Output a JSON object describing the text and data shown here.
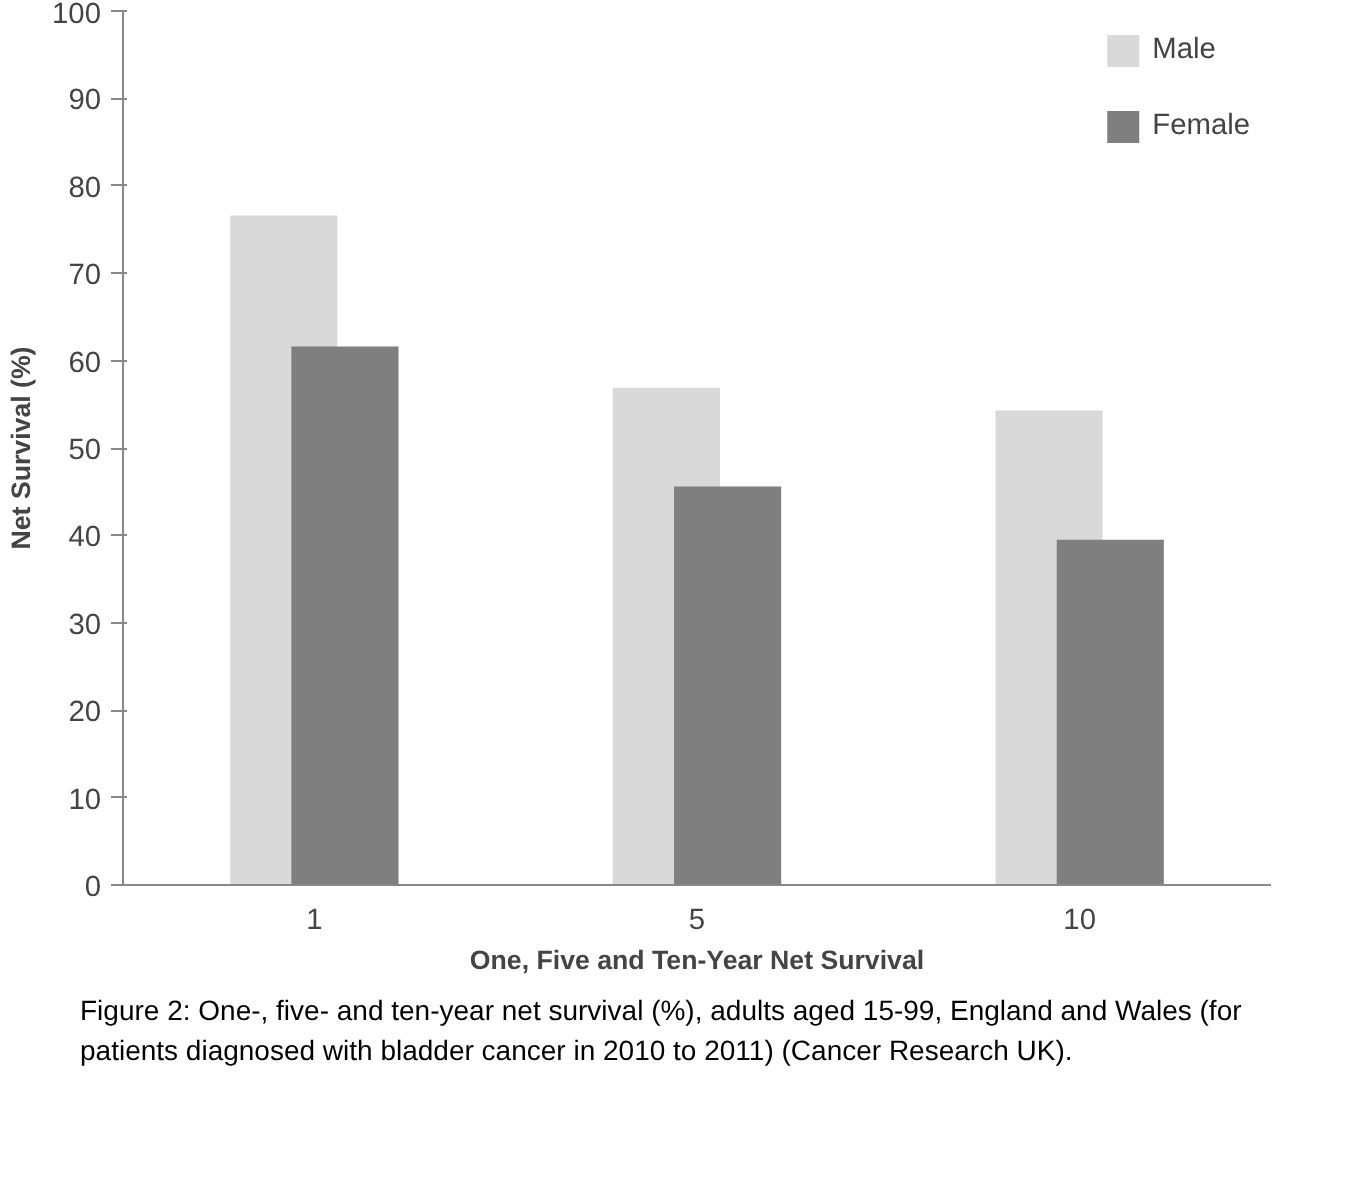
{
  "chart_data": {
    "type": "bar",
    "xlabel": "One, Five and Ten-Year Net Survival",
    "ylabel": "Net Survival (%)",
    "categories": [
      "1",
      "5",
      "10"
    ],
    "series": [
      {
        "name": "Male",
        "color": "#d9d9d9",
        "values": [
          76.6,
          56.9,
          54.3
        ]
      },
      {
        "name": "Female",
        "color": "#7f7f7f",
        "values": [
          61.6,
          45.6,
          39.5
        ]
      }
    ],
    "ylim": [
      0,
      100
    ],
    "yticks": [
      0,
      10,
      20,
      30,
      40,
      50,
      60,
      70,
      80,
      90,
      100
    ],
    "grid": false,
    "legend": "top right",
    "annotations": [
      "Figure 2: One-, five- and ten-year net survival (%), adults aged 15-99, England and Wales (for patients diagnosed with bladder cancer in 2010 to 2011) (Cancer Research UK)."
    ]
  }
}
